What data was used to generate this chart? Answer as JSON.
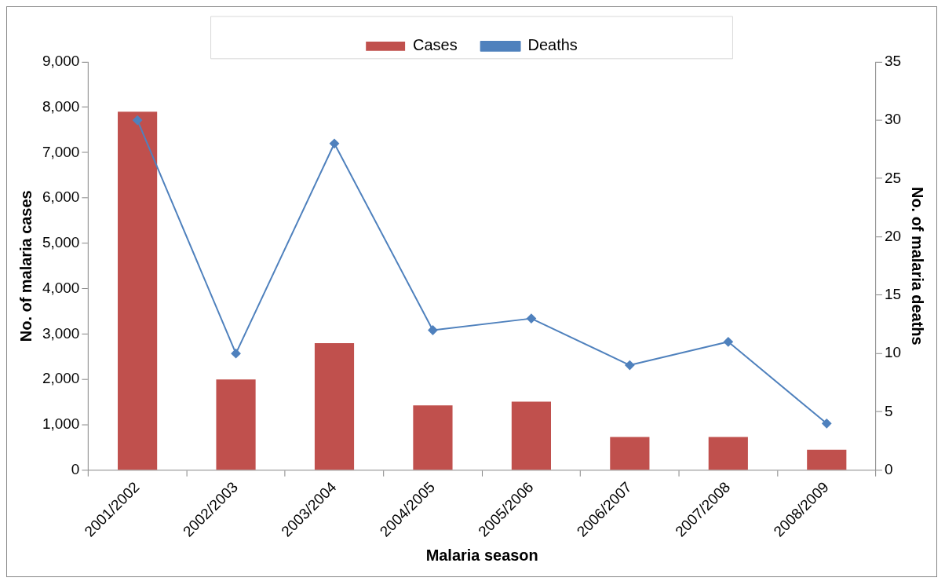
{
  "chart_data": {
    "type": "bar",
    "xlabel": "Malaria season",
    "ylabel": "No. of malaria cases",
    "y2label": "No. of malaria deaths",
    "categories": [
      "2001/2002",
      "2002/2003",
      "2003/2004",
      "2004/2005",
      "2005/2006",
      "2006/2007",
      "2007/2008",
      "2008/2009"
    ],
    "series": [
      {
        "name": "Cases",
        "color": "#c0504d",
        "values": [
          7900,
          2000,
          2800,
          1430,
          1510,
          730,
          730,
          450
        ]
      },
      {
        "name": "Deaths",
        "type": "line",
        "axis": "y2",
        "color": "#4f81bd",
        "values": [
          30,
          10,
          28,
          12,
          13,
          9,
          11,
          4
        ]
      }
    ],
    "ylim": [
      0,
      9000
    ],
    "yticks": [
      {
        "value": 0,
        "label": "0"
      },
      {
        "value": 1000,
        "label": "1,000"
      },
      {
        "value": 2000,
        "label": "2,000"
      },
      {
        "value": 3000,
        "label": "3,000"
      },
      {
        "value": 4000,
        "label": "4,000"
      },
      {
        "value": 5000,
        "label": "5,000"
      },
      {
        "value": 6000,
        "label": "6,000"
      },
      {
        "value": 7000,
        "label": "7,000"
      },
      {
        "value": 8000,
        "label": "8,000"
      },
      {
        "value": 9000,
        "label": "9,000"
      }
    ],
    "y2lim": [
      0,
      35
    ],
    "y2ticks": [
      0,
      5,
      10,
      15,
      20,
      25,
      30,
      35
    ],
    "grid": false,
    "legend": "top",
    "marker": "diamond",
    "line_style": "solid"
  }
}
